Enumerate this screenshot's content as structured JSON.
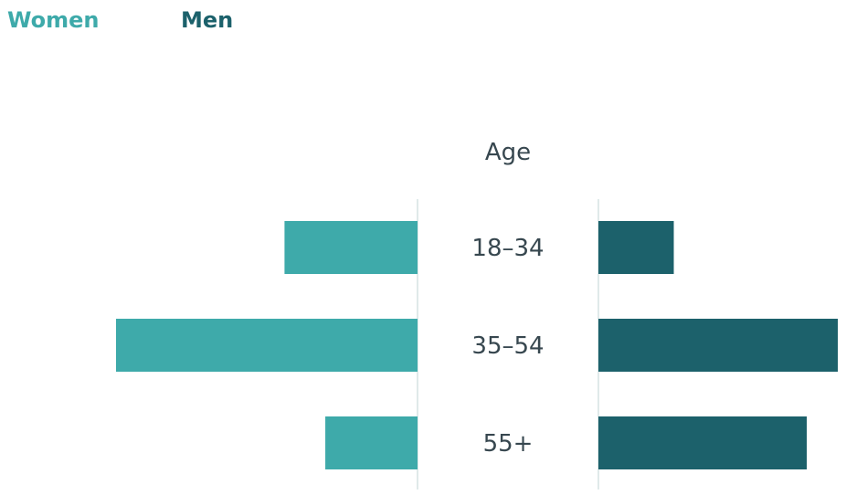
{
  "chart_data": {
    "type": "bar",
    "orientation": "horizontal",
    "layout": "diverging",
    "center_label": "Age",
    "categories": [
      "18–34",
      "35–54",
      "55+"
    ],
    "series": [
      {
        "name": "Women",
        "values": [
          15,
          34,
          10.4
        ],
        "color": "#3eaaaa",
        "side": "left"
      },
      {
        "name": "Men",
        "values": [
          8.5,
          27,
          23.5
        ],
        "color": "#1c616b",
        "side": "right"
      }
    ],
    "xlim": [
      0,
      34
    ],
    "grid": false,
    "legend_position": "top-left"
  }
}
